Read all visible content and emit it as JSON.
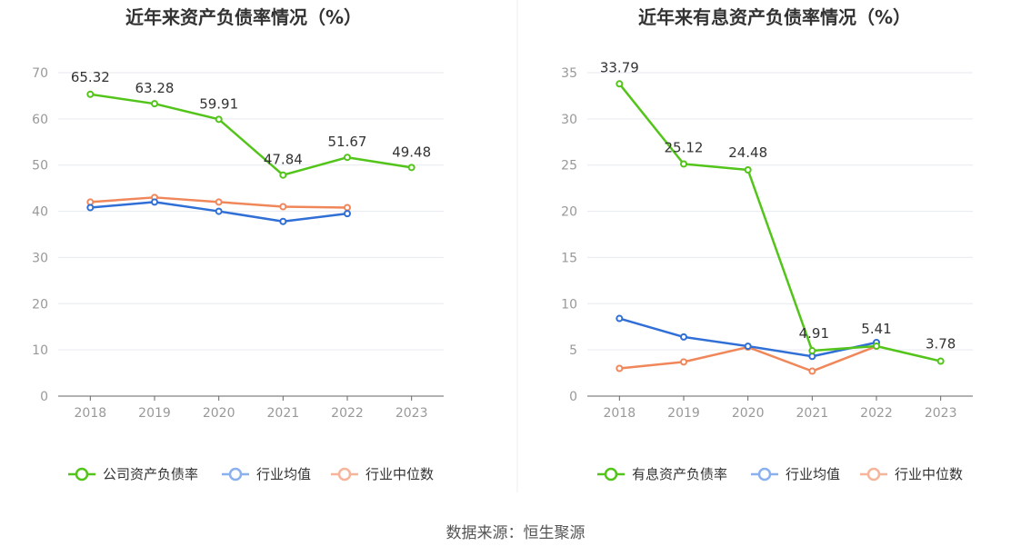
{
  "source_label": "数据来源：恒生聚源",
  "chart_data": [
    {
      "type": "line",
      "title": "近年来资产负债率情况（%）",
      "categories": [
        "2018",
        "2019",
        "2020",
        "2021",
        "2022",
        "2023"
      ],
      "ylim": [
        0,
        70
      ],
      "yticks": [
        0,
        10,
        20,
        30,
        40,
        50,
        60,
        70
      ],
      "grid": true,
      "legend_position": "bottom",
      "series": [
        {
          "name": "公司资产负债率",
          "color": "#52c41a",
          "values": [
            65.32,
            63.28,
            59.91,
            47.84,
            51.67,
            49.48
          ],
          "labels": [
            "65.32",
            "63.28",
            "59.91",
            "47.84",
            "51.67",
            "49.48"
          ]
        },
        {
          "name": "行业均值",
          "color": "#2f6fd6",
          "values": [
            40.8,
            42.0,
            40.0,
            37.8,
            39.5,
            null
          ]
        },
        {
          "name": "行业中位数",
          "color": "#f0875a",
          "values": [
            42.0,
            43.0,
            42.0,
            41.0,
            40.8,
            null
          ]
        }
      ]
    },
    {
      "type": "line",
      "title": "近年来有息资产负债率情况（%）",
      "categories": [
        "2018",
        "2019",
        "2020",
        "2021",
        "2022",
        "2023"
      ],
      "ylim": [
        0,
        35
      ],
      "yticks": [
        0,
        5,
        10,
        15,
        20,
        25,
        30,
        35
      ],
      "grid": true,
      "legend_position": "bottom",
      "series": [
        {
          "name": "有息资产负债率",
          "color": "#52c41a",
          "values": [
            33.79,
            25.12,
            24.48,
            4.91,
            5.41,
            3.78
          ],
          "labels": [
            "33.79",
            "25.12",
            "24.48",
            "4.91",
            "5.41",
            "3.78"
          ]
        },
        {
          "name": "行业均值",
          "color": "#2f6fd6",
          "values": [
            8.4,
            6.4,
            5.4,
            4.3,
            5.8,
            null
          ]
        },
        {
          "name": "行业中位数",
          "color": "#f0875a",
          "values": [
            3.0,
            3.7,
            5.3,
            2.7,
            5.4,
            null
          ]
        }
      ]
    }
  ]
}
